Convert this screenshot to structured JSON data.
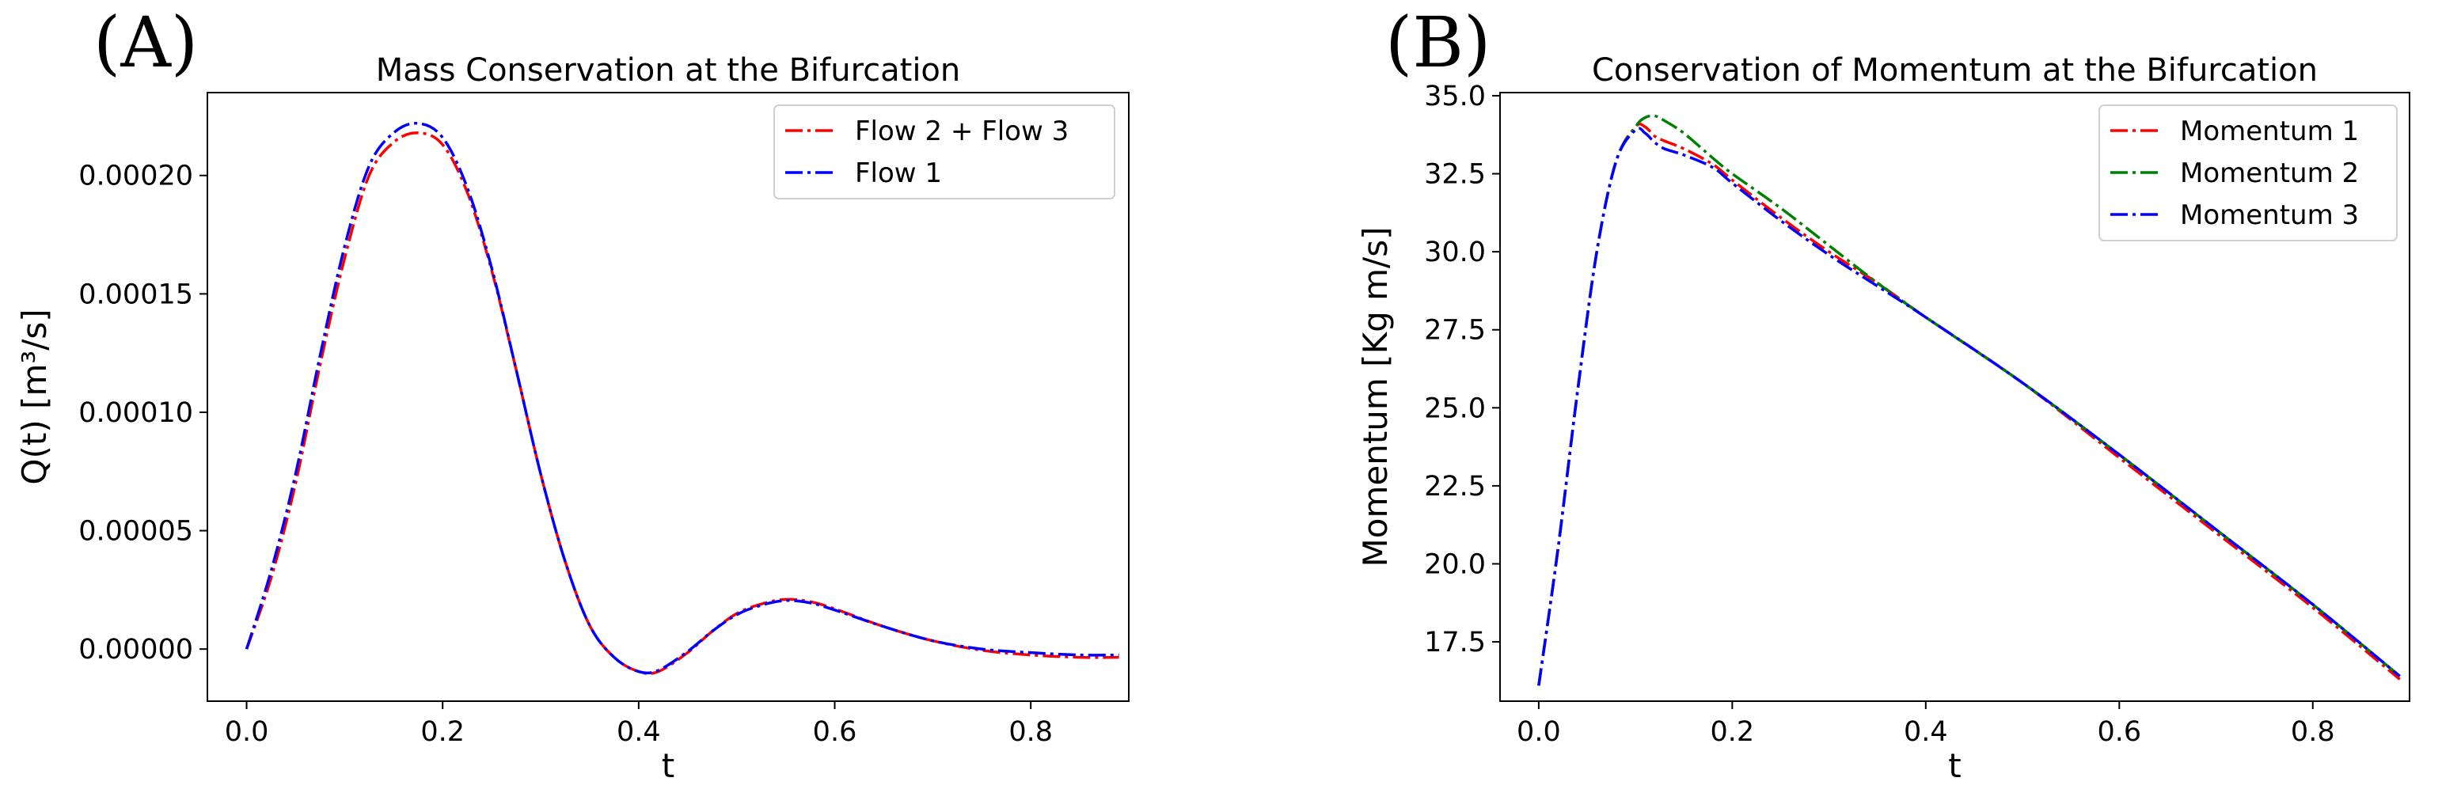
{
  "chart_data": [
    {
      "panel_label": "(A)",
      "type": "line",
      "title": "Mass Conservation at the Bifurcation",
      "xlabel": "t",
      "ylabel": "Q(t) [m³/s]",
      "xlim": [
        -0.04,
        0.9
      ],
      "ylim": [
        -2.2e-05,
        0.000235
      ],
      "xticks": [
        0.0,
        0.2,
        0.4,
        0.6,
        0.8
      ],
      "xtick_labels": [
        "0.0",
        "0.2",
        "0.4",
        "0.6",
        "0.8"
      ],
      "yticks": [
        0.0,
        5e-05,
        0.0001,
        0.00015,
        0.0002
      ],
      "ytick_labels": [
        "0.00000",
        "0.00005",
        "0.00010",
        "0.00015",
        "0.00020"
      ],
      "legend_position": "top-right",
      "x": [
        0.0,
        0.025,
        0.05,
        0.075,
        0.1,
        0.125,
        0.15,
        0.175,
        0.2,
        0.225,
        0.25,
        0.275,
        0.3,
        0.325,
        0.35,
        0.375,
        0.4,
        0.42,
        0.45,
        0.475,
        0.5,
        0.525,
        0.55,
        0.575,
        0.6,
        0.65,
        0.7,
        0.75,
        0.8,
        0.85,
        0.89
      ],
      "series": [
        {
          "name": "Flow 2 + Flow 3",
          "color": "#ff0000",
          "values": [
            0.0,
            3e-05,
            7e-05,
            0.00012,
            0.000165,
            0.0002,
            0.000214,
            0.000218,
            0.000213,
            0.000193,
            0.00016,
            0.000118,
            7.4e-05,
            3.7e-05,
            1e-05,
            -3.5e-06,
            -9.5e-06,
            -9.5e-06,
            -1.5e-06,
            7.5e-06,
            1.5e-05,
            1.9e-05,
            2.1e-05,
            2e-05,
            1.7e-05,
            9.5e-06,
            3.5e-06,
            -5e-07,
            -2.5e-06,
            -3.5e-06,
            -3.5e-06
          ]
        },
        {
          "name": "Flow 1",
          "color": "#0000ff",
          "values": [
            0.0,
            3.3e-05,
            7.4e-05,
            0.000124,
            0.00017,
            0.000204,
            0.000218,
            0.000222,
            0.000216,
            0.000195,
            0.000161,
            0.000118,
            7.4e-05,
            3.7e-05,
            1e-05,
            -3.5e-06,
            -9.5e-06,
            -9e-06,
            -1e-06,
            7.5e-06,
            1.45e-05,
            1.85e-05,
            2.05e-05,
            1.95e-05,
            1.65e-05,
            9.5e-06,
            3.5e-06,
            0.0,
            -1.5e-06,
            -2.5e-06,
            -2.5e-06
          ]
        }
      ]
    },
    {
      "panel_label": "(B)",
      "type": "line",
      "title": "Conservation of Momentum at the Bifurcation",
      "xlabel": "t",
      "ylabel": "Momentum [Kg m/s]",
      "xlim": [
        -0.04,
        0.9
      ],
      "ylim": [
        15.6,
        35.1
      ],
      "xticks": [
        0.0,
        0.2,
        0.4,
        0.6,
        0.8
      ],
      "xtick_labels": [
        "0.0",
        "0.2",
        "0.4",
        "0.6",
        "0.8"
      ],
      "yticks": [
        17.5,
        20.0,
        22.5,
        25.0,
        27.5,
        30.0,
        32.5,
        35.0
      ],
      "ytick_labels": [
        "17.5",
        "20.0",
        "22.5",
        "25.0",
        "27.5",
        "30.0",
        "32.5",
        "35.0"
      ],
      "legend_position": "top-right",
      "x": [
        0.0,
        0.02,
        0.04,
        0.06,
        0.08,
        0.1,
        0.11,
        0.12,
        0.13,
        0.15,
        0.18,
        0.2,
        0.25,
        0.3,
        0.35,
        0.4,
        0.5,
        0.6,
        0.7,
        0.8,
        0.89
      ],
      "series": [
        {
          "name": "Momentum 1",
          "color": "#ff0000",
          "values": [
            16.1,
            20.5,
            25.5,
            30.0,
            32.9,
            34.0,
            34.0,
            33.7,
            33.55,
            33.3,
            32.8,
            32.3,
            31.1,
            30.0,
            29.0,
            27.9,
            25.8,
            23.4,
            21.0,
            18.6,
            16.3
          ]
        },
        {
          "name": "Momentum 2",
          "color": "#008000",
          "values": [
            16.1,
            20.5,
            25.5,
            30.0,
            32.9,
            34.0,
            34.3,
            34.35,
            34.2,
            33.8,
            33.0,
            32.5,
            31.4,
            30.2,
            29.0,
            27.9,
            25.8,
            23.5,
            21.1,
            18.7,
            16.4
          ]
        },
        {
          "name": "Momentum 3",
          "color": "#0000ff",
          "values": [
            16.1,
            20.5,
            25.5,
            30.0,
            32.9,
            33.9,
            33.8,
            33.5,
            33.3,
            33.1,
            32.7,
            32.2,
            31.0,
            29.9,
            28.9,
            27.9,
            25.8,
            23.5,
            21.1,
            18.7,
            16.4
          ]
        }
      ]
    }
  ]
}
